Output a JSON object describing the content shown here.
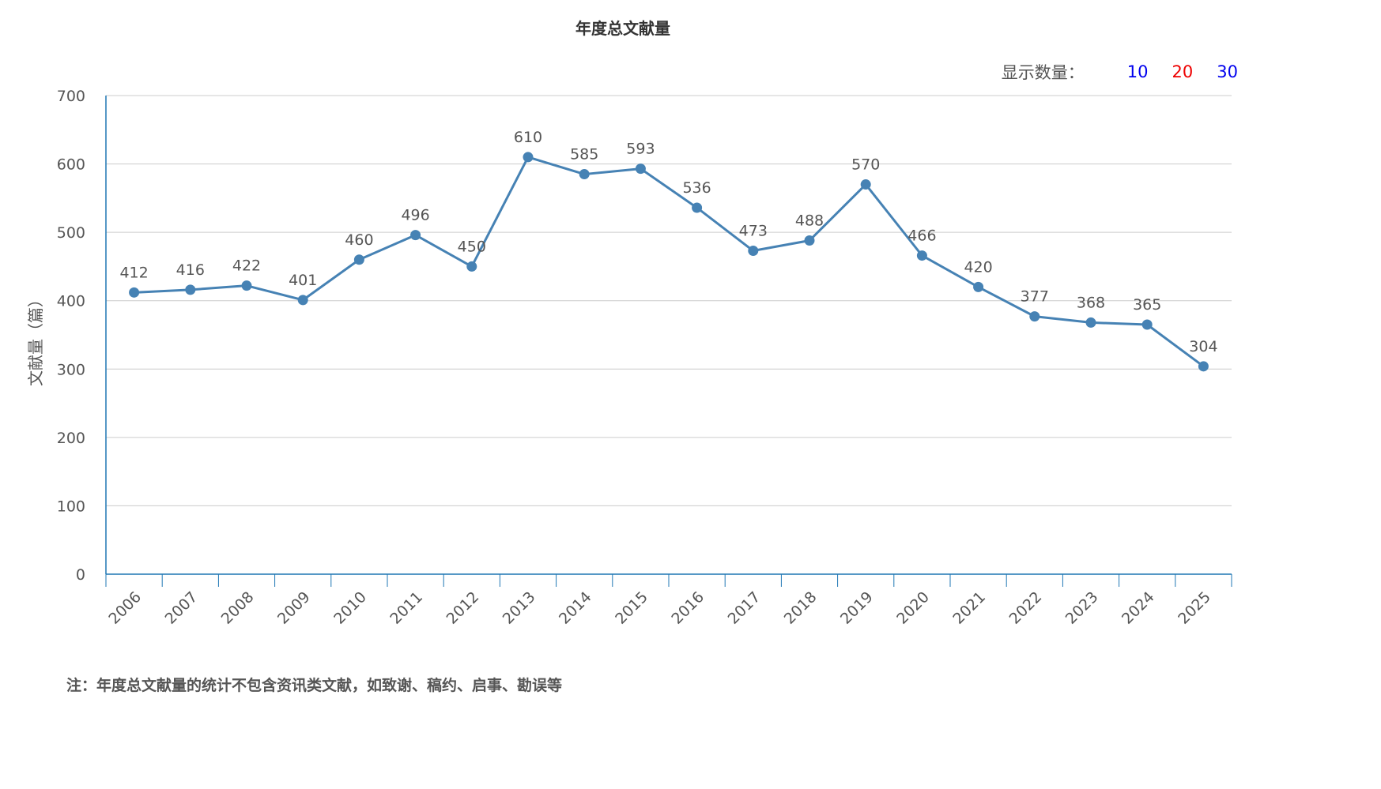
{
  "chart_data": {
    "type": "line",
    "title": "年度总文献量",
    "xlabel": "",
    "ylabel": "文献量（篇）",
    "ylim": [
      0,
      700
    ],
    "yticks": [
      0,
      100,
      200,
      300,
      400,
      500,
      600,
      700
    ],
    "grid": true,
    "categories": [
      "2006",
      "2007",
      "2008",
      "2009",
      "2010",
      "2011",
      "2012",
      "2013",
      "2014",
      "2015",
      "2016",
      "2017",
      "2018",
      "2019",
      "2020",
      "2021",
      "2022",
      "2023",
      "2024",
      "2025"
    ],
    "series": [
      {
        "values": [
          412,
          416,
          422,
          401,
          460,
          496,
          450,
          610,
          585,
          593,
          536,
          473,
          488,
          570,
          466,
          420,
          377,
          368,
          365,
          304
        ],
        "color": "#4682b4"
      }
    ],
    "data_labels": true
  },
  "display_count": {
    "label": "显示数量：",
    "options": [
      {
        "text": "10",
        "color": "#0000ee"
      },
      {
        "text": "20",
        "color": "#ee0000"
      },
      {
        "text": "30",
        "color": "#0000ee"
      }
    ]
  },
  "footnote": "注：年度总文献量的统计不包含资讯类文献，如致谢、稿约、启事、勘误等",
  "colors": {
    "axis": "#1f77b4",
    "grid": "#cccccc",
    "line": "#4682b4"
  }
}
